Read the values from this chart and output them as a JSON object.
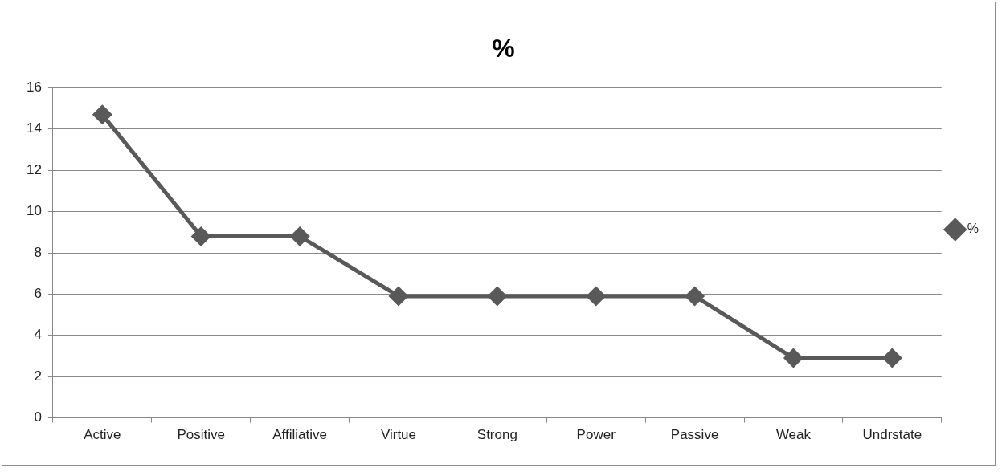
{
  "chart_data": {
    "type": "line",
    "title": "%",
    "categories": [
      "Active",
      "Positive",
      "Affiliative",
      "Virtue",
      "Strong",
      "Power",
      "Passive",
      "Weak",
      "Undrstate"
    ],
    "series": [
      {
        "name": "%",
        "color": "#595959",
        "values": [
          14.7,
          8.8,
          8.8,
          5.9,
          5.9,
          5.9,
          5.9,
          2.9,
          2.9
        ]
      }
    ],
    "ylim": [
      0,
      16
    ],
    "yticks": [
      0,
      2,
      4,
      6,
      8,
      10,
      12,
      14,
      16
    ],
    "grid": "y",
    "legend": "right",
    "marker": "diamond",
    "line_style": "solid"
  }
}
